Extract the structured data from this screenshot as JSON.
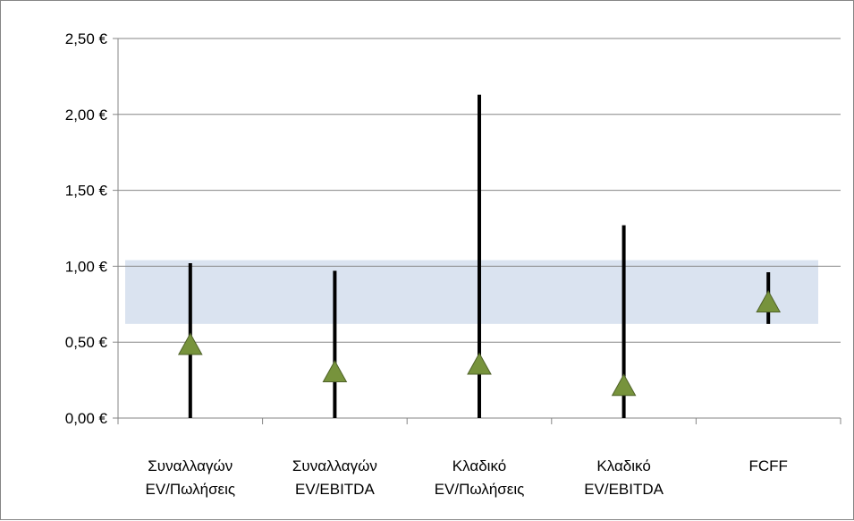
{
  "chart_data": {
    "type": "range-marker",
    "categories": [
      [
        "Συναλλαγών",
        "EV/Πωλήσεις"
      ],
      [
        "Συναλλαγών",
        "EV/EBITDA"
      ],
      [
        "Κλαδικό",
        "EV/Πωλήσεις"
      ],
      [
        "Κλαδικό",
        "EV/EBITDA"
      ],
      [
        "FCFF"
      ]
    ],
    "ranges": [
      {
        "low": 0.0,
        "high": 1.02
      },
      {
        "low": 0.0,
        "high": 0.97
      },
      {
        "low": 0.0,
        "high": 2.13
      },
      {
        "low": 0.0,
        "high": 1.27
      },
      {
        "low": 0.62,
        "high": 0.96
      }
    ],
    "markers": [
      0.48,
      0.3,
      0.35,
      0.21,
      0.76
    ],
    "band": {
      "low": 0.62,
      "high": 1.04
    },
    "yticks": [
      0,
      0.5,
      1.0,
      1.5,
      2.0,
      2.5
    ],
    "ytick_labels": [
      "0,00 €",
      "0,50 €",
      "1,00 €",
      "1,50 €",
      "2,00 €",
      "2,50 €"
    ],
    "ylim": [
      0,
      2.5
    ],
    "grid": true,
    "legend": "none",
    "colors": {
      "band": "#dae3f0",
      "range_line": "#000000",
      "marker_fill": "#77933c",
      "marker_stroke": "#4f6228",
      "grid": "#868686",
      "axis": "#868686"
    }
  }
}
